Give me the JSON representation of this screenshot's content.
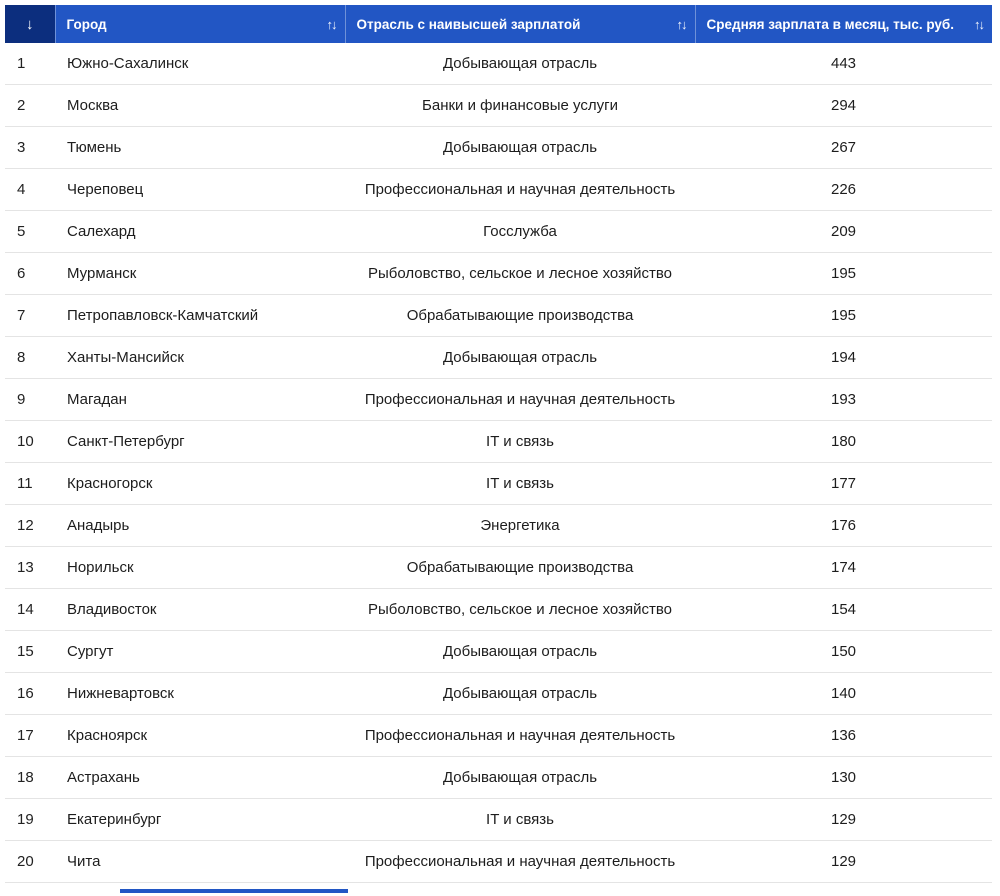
{
  "chart_data": {
    "type": "table",
    "title": "",
    "columns": [
      "Город",
      "Отрасль с наивысшей зарплатой",
      "Средняя зарплата в месяц, тыс. руб."
    ],
    "rows": [
      [
        "1",
        "Южно-Сахалинск",
        "Добывающая отрасль",
        "443"
      ],
      [
        "2",
        "Москва",
        "Банки и финансовые услуги",
        "294"
      ],
      [
        "3",
        "Тюмень",
        "Добывающая отрасль",
        "267"
      ],
      [
        "4",
        "Череповец",
        "Профессиональная и научная деятельность",
        "226"
      ],
      [
        "5",
        "Салехард",
        "Госслужба",
        "209"
      ],
      [
        "6",
        "Мурманск",
        "Рыболовство, сельское и лесное хозяйство",
        "195"
      ],
      [
        "7",
        "Петропавловск-Камчатский",
        "Обрабатывающие производства",
        "195"
      ],
      [
        "8",
        "Ханты-Мансийск",
        "Добывающая отрасль",
        "194"
      ],
      [
        "9",
        "Магадан",
        "Профессиональная и научная деятельность",
        "193"
      ],
      [
        "10",
        "Санкт-Петербург",
        "IT и связь",
        "180"
      ],
      [
        "11",
        "Красногорск",
        "IT и связь",
        "177"
      ],
      [
        "12",
        "Анадырь",
        "Энергетика",
        "176"
      ],
      [
        "13",
        "Норильск",
        "Обрабатывающие производства",
        "174"
      ],
      [
        "14",
        "Владивосток",
        "Рыболовство, сельское и лесное хозяйство",
        "154"
      ],
      [
        "15",
        "Сургут",
        "Добывающая отрасль",
        "150"
      ],
      [
        "16",
        "Нижневартовск",
        "Добывающая отрасль",
        "140"
      ],
      [
        "17",
        "Красноярск",
        "Профессиональная и научная деятельность",
        "136"
      ],
      [
        "18",
        "Астрахань",
        "Добывающая отрасль",
        "130"
      ],
      [
        "19",
        "Екатеринбург",
        "IT и связь",
        "129"
      ],
      [
        "20",
        "Чита",
        "Профессиональная и научная деятельность",
        "129"
      ]
    ]
  },
  "header": {
    "rank_sort_icon": "↓",
    "sort_icon": "↑↓"
  },
  "colors": {
    "header_bg": "#2256C4",
    "header_first_bg": "#0C2E7E",
    "row_border": "#e4e4e4",
    "body_text": "#1d1d1d"
  }
}
